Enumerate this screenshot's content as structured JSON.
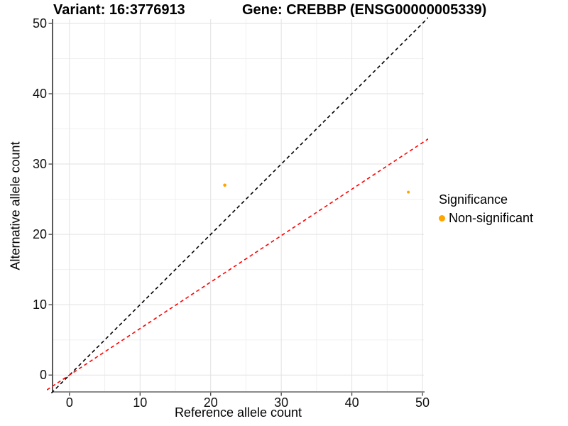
{
  "titles": {
    "variant": "Variant: 16:3776913",
    "gene": "Gene: CREBBP (ENSG00000005339)"
  },
  "chart_data": {
    "type": "scatter",
    "xlabel": "Reference allele count",
    "ylabel": "Alternative allele count",
    "xlim": [
      -2.4,
      50.2
    ],
    "ylim": [
      -2.4,
      50.6
    ],
    "xticks": [
      0,
      10,
      20,
      30,
      40,
      50
    ],
    "yticks": [
      0,
      10,
      20,
      30,
      40,
      50
    ],
    "minor_xticks": [
      5,
      15,
      25,
      35,
      45
    ],
    "minor_yticks": [
      5,
      15,
      25,
      35,
      45
    ],
    "grid": true,
    "background": "#ffffff",
    "major_grid_color": "#e2e2e2",
    "minor_grid_color": "#f0f0f0",
    "series": [
      {
        "name": "Non-significant",
        "color": "#FFA500",
        "points": [
          {
            "x": 22,
            "y": 27,
            "r": 2.3
          },
          {
            "x": 48,
            "y": 26,
            "r": 2.0
          }
        ]
      }
    ],
    "reference_lines": [
      {
        "name": "identity-line",
        "slope": 1,
        "intercept": 0,
        "color": "#000000",
        "dash": "dashed"
      },
      {
        "name": "fit-line",
        "slope": 0.6607,
        "intercept": 0,
        "color": "#FF0000",
        "dash": "dashed"
      }
    ],
    "legend": {
      "title": "Significance",
      "position": "right",
      "items": [
        {
          "label": "Non-significant",
          "color": "#FFA500"
        }
      ]
    }
  }
}
